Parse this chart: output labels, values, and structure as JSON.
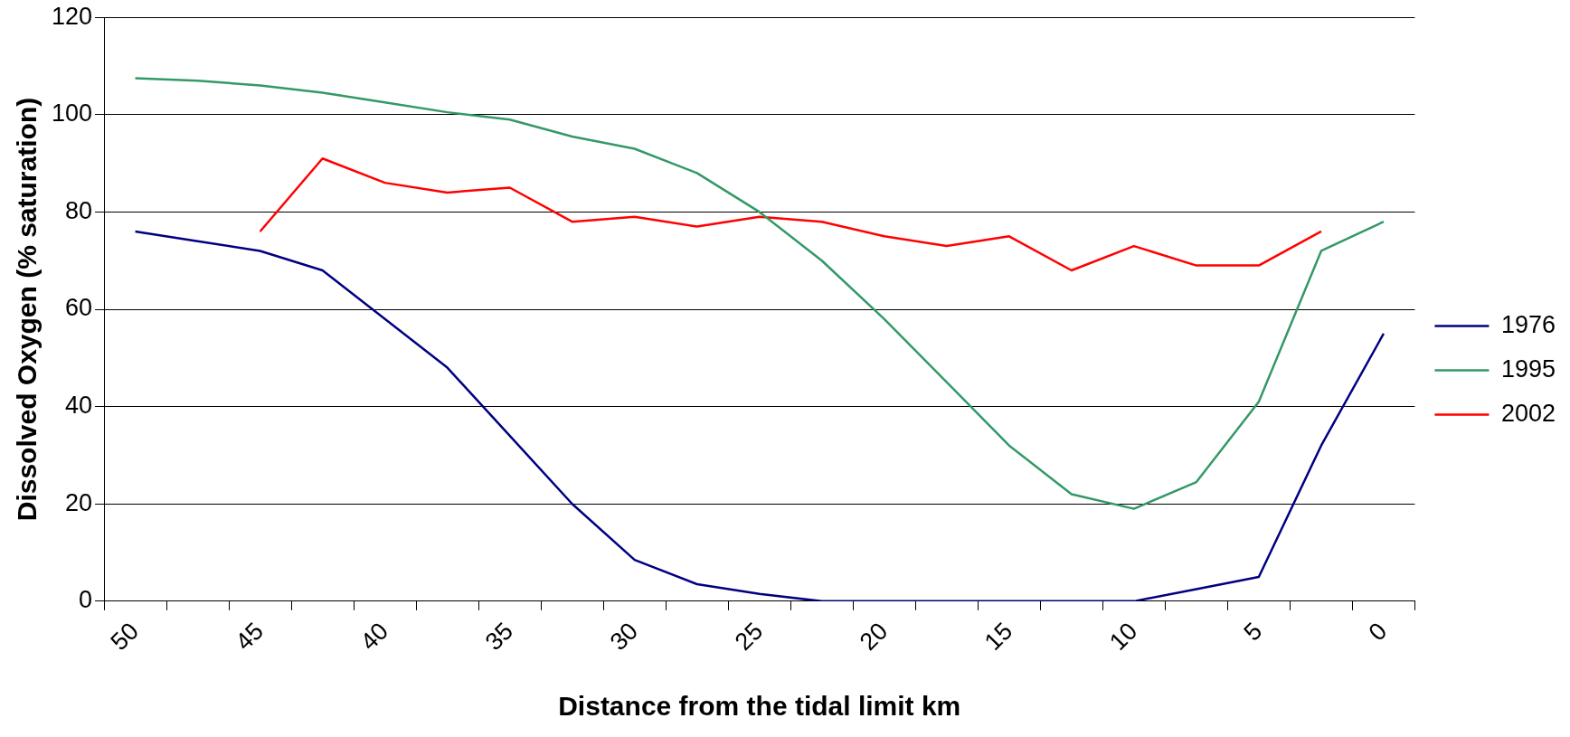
{
  "chart_data": {
    "type": "line",
    "xlabel": "Distance from the tidal limit km",
    "ylabel": "Dissolved Oxygen (% saturation)",
    "categories": [
      "50",
      null,
      "45",
      null,
      "40",
      null,
      "35",
      null,
      "30",
      null,
      "25",
      null,
      "20",
      null,
      "15",
      null,
      "10",
      null,
      "5",
      null,
      "0"
    ],
    "series": [
      {
        "name": "1976",
        "color": "#000080",
        "values": [
          76,
          74,
          72,
          68,
          58,
          48,
          34,
          20,
          8.5,
          3.5,
          1.5,
          0,
          0,
          0,
          0,
          0,
          0,
          2.5,
          5,
          32,
          55
        ]
      },
      {
        "name": "1995",
        "color": "#339966",
        "values": [
          107.5,
          107,
          106,
          104.5,
          102.5,
          100.5,
          99,
          95.5,
          93,
          88,
          80,
          70,
          58,
          45,
          32,
          22,
          19,
          24.5,
          41,
          72,
          78
        ]
      },
      {
        "name": "2002",
        "color": "#ff0000",
        "values": [
          null,
          null,
          76,
          91,
          86,
          84,
          85,
          78,
          79,
          77,
          79,
          78,
          75,
          73,
          75,
          68,
          73,
          69,
          69,
          76,
          null
        ]
      }
    ],
    "ylim": [
      0,
      120
    ],
    "yticks": [
      0,
      20,
      40,
      60,
      80,
      100,
      120
    ],
    "grid": "y",
    "legend": "right",
    "marker": "none",
    "line_style": "solid"
  }
}
